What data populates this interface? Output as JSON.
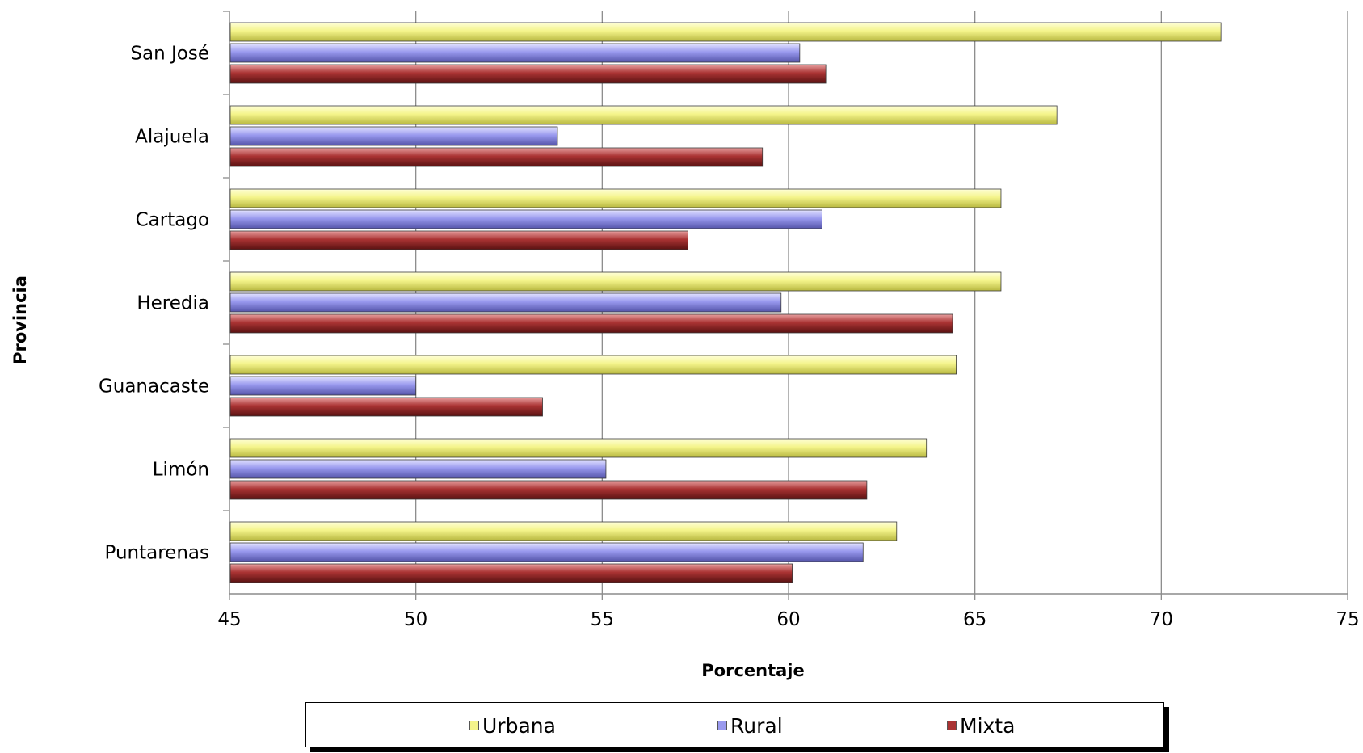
{
  "chart_data": {
    "type": "bar",
    "orientation": "horizontal",
    "xlabel": "Porcentaje",
    "ylabel": "Provincia",
    "xlim": [
      45,
      75
    ],
    "xticks": [
      45,
      50,
      55,
      60,
      65,
      70,
      75
    ],
    "grid": true,
    "legend_position": "bottom",
    "categories": [
      "San José",
      "Alajuela",
      "Cartago",
      "Heredia",
      "Guanacaste",
      "Limón",
      "Puntarenas"
    ],
    "series": [
      {
        "name": "Urbana",
        "color": "#f4f48a",
        "values": [
          71.6,
          67.2,
          65.7,
          65.7,
          64.5,
          63.7,
          62.9
        ]
      },
      {
        "name": "Rural",
        "color": "#9999ee",
        "values": [
          60.3,
          53.8,
          60.9,
          59.8,
          50.0,
          55.1,
          62.0
        ]
      },
      {
        "name": "Mixta",
        "color": "#aa3333",
        "values": [
          61.0,
          59.3,
          57.3,
          64.4,
          53.4,
          62.1,
          60.1
        ]
      }
    ]
  }
}
